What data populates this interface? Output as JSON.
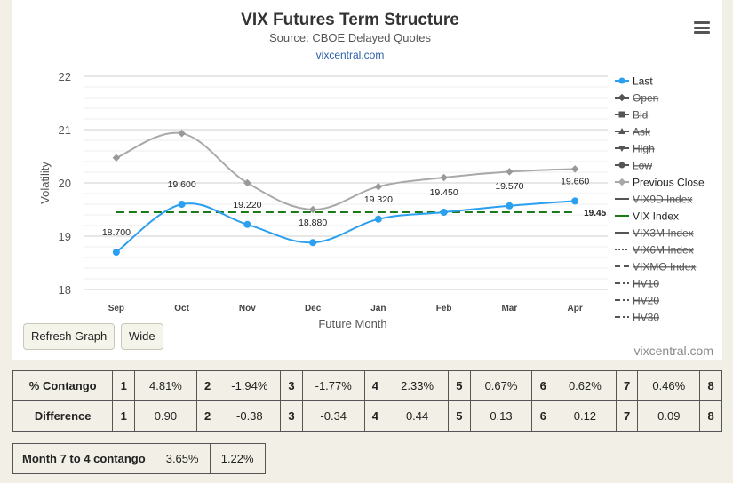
{
  "chart_data": {
    "type": "line",
    "title": "VIX Futures Term Structure",
    "subtitle": "Source: CBOE Delayed Quotes",
    "credit_top": "vixcentral.com",
    "credit_bottom": "vixcentral.com",
    "xlabel": "Future Month",
    "ylabel": "Volatility",
    "categories": [
      "Sep",
      "Oct",
      "Nov",
      "Dec",
      "Jan",
      "Feb",
      "Mar",
      "Apr"
    ],
    "ylim": [
      18,
      22
    ],
    "yticks": [
      "18",
      "19",
      "20",
      "21",
      "22"
    ],
    "grid": true,
    "legend_position": "right",
    "series": [
      {
        "name": "Last",
        "color": "#2b9ff0",
        "values": [
          18.7,
          19.6,
          19.22,
          18.88,
          19.32,
          19.45,
          19.57,
          19.66
        ],
        "labels": [
          "18.700",
          "19.600",
          "19.220",
          "18.880",
          "19.320",
          "19.450",
          "19.570",
          "19.660"
        ]
      },
      {
        "name": "Previous Close",
        "color": "#a8a8a8",
        "values": [
          20.47,
          20.93,
          20.0,
          19.5,
          19.93,
          20.1,
          20.21,
          20.26
        ]
      },
      {
        "name": "VIX Index",
        "color": "#1a7a1a",
        "value": 19.45,
        "label": "19.45"
      }
    ],
    "legend": [
      {
        "name": "Last",
        "color": "#2b9ff0",
        "marker": "circle",
        "active": true
      },
      {
        "name": "Open",
        "color": "#555555",
        "marker": "diamond",
        "active": false
      },
      {
        "name": "Bid",
        "color": "#555555",
        "marker": "square",
        "active": false
      },
      {
        "name": "Ask",
        "color": "#555555",
        "marker": "triangle",
        "active": false
      },
      {
        "name": "High",
        "color": "#555555",
        "marker": "triangle-down",
        "active": false
      },
      {
        "name": "Low",
        "color": "#555555",
        "marker": "circle",
        "active": false
      },
      {
        "name": "Previous Close",
        "color": "#a8a8a8",
        "marker": "diamond",
        "active": true
      },
      {
        "name": "VIX9D Index",
        "color": "#555555",
        "marker": "line",
        "active": false
      },
      {
        "name": "VIX Index",
        "color": "#1a7a1a",
        "marker": "line",
        "active": true
      },
      {
        "name": "VIX3M Index",
        "color": "#555555",
        "marker": "line",
        "active": false
      },
      {
        "name": "VIX6M Index",
        "color": "#555555",
        "marker": "dotted",
        "active": false
      },
      {
        "name": "VIXMO Index",
        "color": "#555555",
        "marker": "dashed",
        "active": false
      },
      {
        "name": "HV10",
        "color": "#555555",
        "marker": "dashdot",
        "active": false
      },
      {
        "name": "HV20",
        "color": "#555555",
        "marker": "dashdot",
        "active": false
      },
      {
        "name": "HV30",
        "color": "#555555",
        "marker": "dashdot",
        "active": false
      }
    ]
  },
  "buttons": {
    "refresh": "Refresh Graph",
    "wide": "Wide"
  },
  "contango_table": {
    "rows": [
      {
        "header": "% Contango",
        "cells": [
          "1",
          "4.81%",
          "2",
          "-1.94%",
          "3",
          "-1.77%",
          "4",
          "2.33%",
          "5",
          "0.67%",
          "6",
          "0.62%",
          "7",
          "0.46%",
          "8"
        ]
      },
      {
        "header": "Difference",
        "cells": [
          "1",
          "0.90",
          "2",
          "-0.38",
          "3",
          "-0.34",
          "4",
          "0.44",
          "5",
          "0.13",
          "6",
          "0.12",
          "7",
          "0.09",
          "8"
        ]
      }
    ]
  },
  "month_table": {
    "label": "Month 7 to 4 contango",
    "values": [
      "3.65%",
      "1.22%"
    ]
  }
}
